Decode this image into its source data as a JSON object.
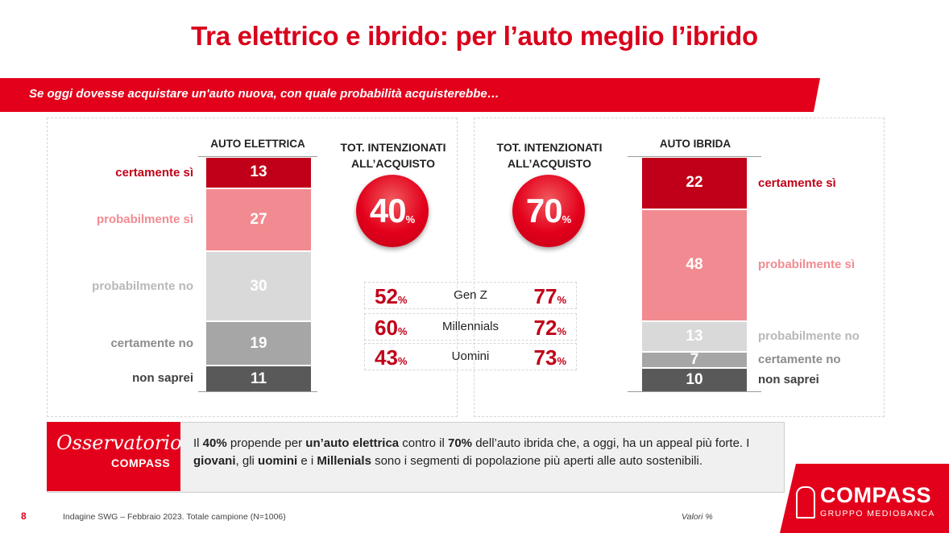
{
  "title": "Tra elettrico e ibrido: per l’auto meglio l’ibrido",
  "question": "Se oggi dovesse acquistare un'auto nuova, con quale probabilità acquisterebbe…",
  "colors": {
    "brand_red": "#d9001b",
    "certamente_si": "#c00018",
    "probabilmente_si": "#f28b91",
    "probabilmente_no": "#d9d9d9",
    "certamente_no": "#a6a6a6",
    "non_saprei": "#595959"
  },
  "chart_data": [
    {
      "type": "bar",
      "stacked": true,
      "title": "AUTO ELETTRICA",
      "categories": [
        "certamente sì",
        "probabilmente sì",
        "probabilmente no",
        "certamente no",
        "non saprei"
      ],
      "values": [
        13,
        27,
        30,
        19,
        11
      ],
      "total_label": "TOT. INTENZIONATI ALL’ACQUISTO",
      "total": "40",
      "total_unit": "%"
    },
    {
      "type": "bar",
      "stacked": true,
      "title": "AUTO IBRIDA",
      "categories": [
        "certamente sì",
        "probabilmente sì",
        "probabilmente no",
        "certamente no",
        "non saprei"
      ],
      "values": [
        22,
        48,
        13,
        7,
        10
      ],
      "total_label": "TOT. INTENZIONATI ALL’ACQUISTO",
      "total": "70",
      "total_unit": "%"
    }
  ],
  "segments": [
    {
      "name": "Gen Z",
      "elettrica": "52",
      "ibrida": "77"
    },
    {
      "name": "Millennials",
      "elettrica": "60",
      "ibrida": "72"
    },
    {
      "name": "Uomini",
      "elettrica": "43",
      "ibrida": "73"
    }
  ],
  "percent_sign": "%",
  "observatory": {
    "logo_line1": "Osservatorio",
    "logo_line2": "COMPASS",
    "text_parts": [
      {
        "t": "Il ",
        "b": false
      },
      {
        "t": "40%",
        "b": true
      },
      {
        "t": " propende per ",
        "b": false
      },
      {
        "t": "un’auto elettrica",
        "b": true
      },
      {
        "t": " contro il ",
        "b": false
      },
      {
        "t": "70%",
        "b": true
      },
      {
        "t": "  dell’auto ibrida che, a oggi, ha un appeal più forte. I ",
        "b": false
      },
      {
        "t": "giovani",
        "b": true
      },
      {
        "t": ", gli ",
        "b": false
      },
      {
        "t": "uomini",
        "b": true
      },
      {
        "t": " e i ",
        "b": false
      },
      {
        "t": "Millenials",
        "b": true
      },
      {
        "t": " sono i segmenti di popolazione più aperti alle auto sostenibili.",
        "b": false
      }
    ]
  },
  "footer": {
    "page": "8",
    "source": "Indagine SWG – Febbraio 2023. Totale campione (N=1006)",
    "values_note": "Valori %"
  },
  "brand": {
    "name": "COMPASS",
    "sub": "GRUPPO MEDIOBANCA"
  }
}
